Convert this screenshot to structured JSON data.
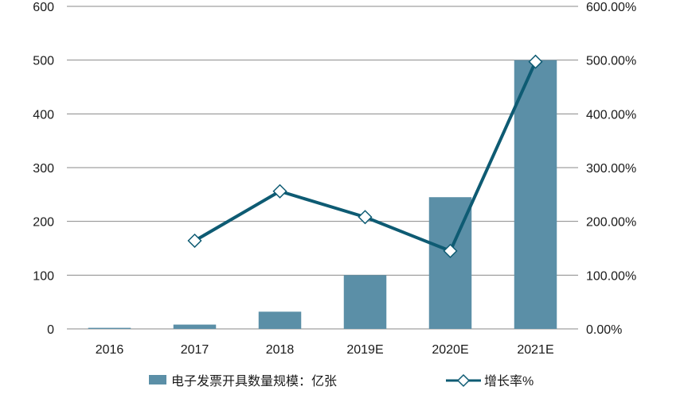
{
  "chart_data": {
    "type": "bar",
    "categories": [
      "2016",
      "2017",
      "2018",
      "2019E",
      "2020E",
      "2021E"
    ],
    "series": [
      {
        "name": "电子发票开具数量规模：亿张",
        "type": "bar",
        "axis": "left",
        "values": [
          2,
          8,
          32,
          100,
          245,
          500
        ],
        "color": "#5b8fa7"
      },
      {
        "name": "增长率%",
        "type": "line",
        "axis": "right",
        "values": [
          null,
          164,
          256,
          208,
          145,
          497
        ],
        "color": "#0e5b73",
        "marker": "diamond"
      }
    ],
    "ylim": [
      0,
      600
    ],
    "y2lim": [
      0,
      600
    ],
    "yticks": [
      "0",
      "100",
      "200",
      "300",
      "400",
      "500",
      "600"
    ],
    "y2ticks": [
      "0.00%",
      "100.00%",
      "200.00%",
      "300.00%",
      "400.00%",
      "500.00%",
      "600.00%"
    ],
    "grid": true,
    "legend_position": "bottom"
  }
}
